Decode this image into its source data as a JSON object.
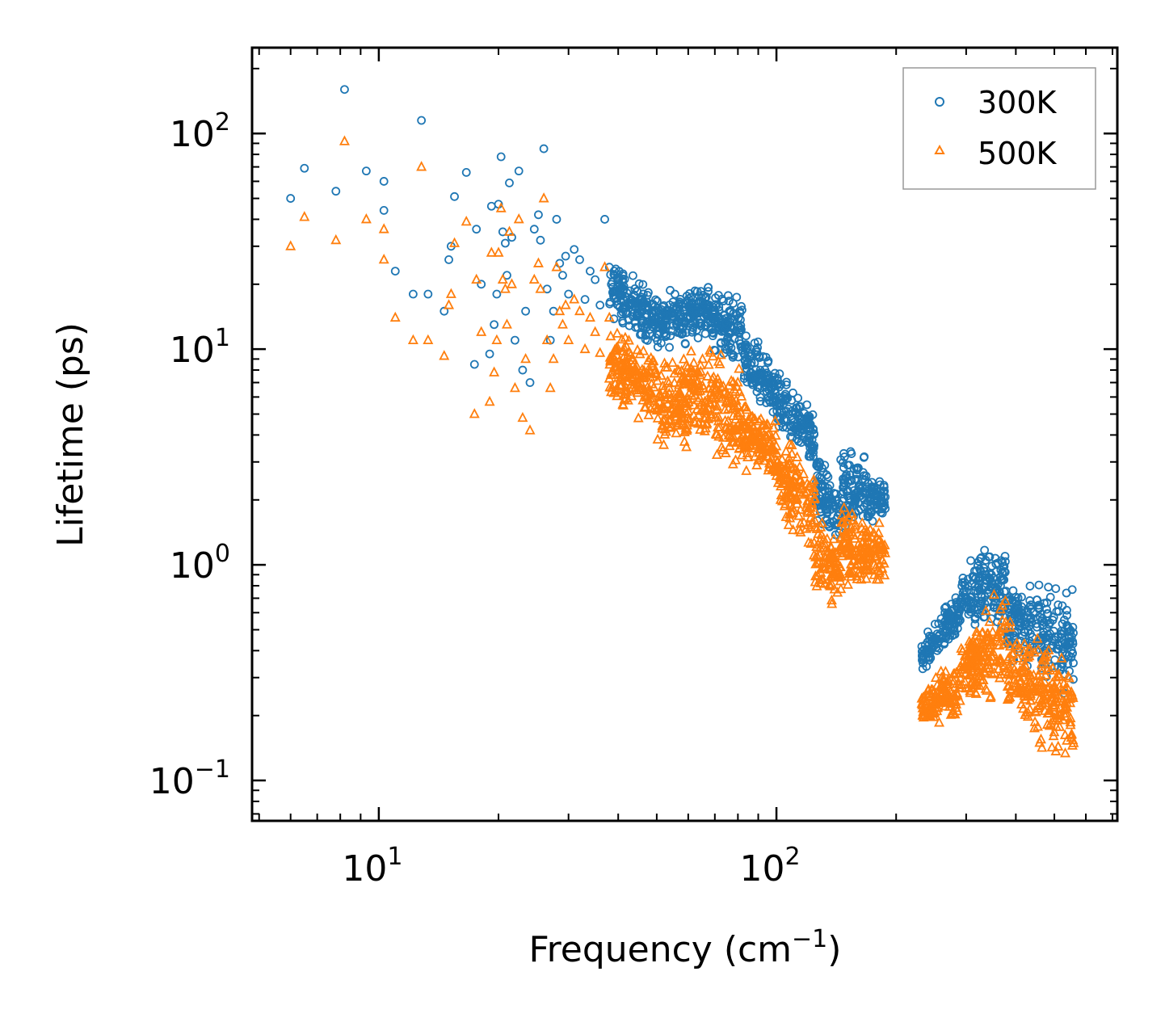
{
  "chart_data": {
    "type": "scatter",
    "xscale": "log",
    "yscale": "log",
    "xlim": [
      4.8,
      720
    ],
    "ylim": [
      0.065,
      250
    ],
    "xlabel_main": "Frequency (cm",
    "xlabel_sup": "−1",
    "xlabel_end": ")",
    "ylabel": "Lifetime (ps)",
    "x_ticks": [
      {
        "value": 10,
        "base": "10",
        "exp": "1"
      },
      {
        "value": 100,
        "base": "10",
        "exp": "2"
      }
    ],
    "y_ticks": [
      {
        "value": 0.1,
        "base": "10",
        "exp": "−1"
      },
      {
        "value": 1,
        "base": "10",
        "exp": "0"
      },
      {
        "value": 10,
        "base": "10",
        "exp": "1"
      },
      {
        "value": 100,
        "base": "10",
        "exp": "2"
      }
    ],
    "legend_position": "top-right",
    "series": [
      {
        "name": "300K",
        "marker": "circle",
        "color": "#1f77b4",
        "x": [
          6.0,
          6.5,
          7.8,
          8.2,
          9.3,
          10.3,
          10.3,
          11.0,
          12.2,
          12.8,
          13.3,
          14.6,
          15.0,
          15.2,
          15.5,
          16.6,
          17.4,
          17.6,
          18.1,
          19.0,
          19.2,
          19.5,
          19.8,
          20.0,
          20.3,
          20.5,
          20.8,
          21.0,
          21.3,
          21.6,
          22.0,
          22.5,
          23.0,
          23.4,
          24.0,
          24.6,
          25.2,
          25.5,
          26.0,
          26.5,
          27.0,
          27.5,
          28.0,
          28.5,
          29.0,
          29.5,
          30.0,
          31.0,
          32.0,
          33.0,
          34.0,
          35.0,
          36.0,
          37.0,
          38.0
        ],
        "y": [
          50,
          69,
          54,
          160,
          67,
          60,
          44,
          23,
          18,
          115,
          18,
          15,
          26,
          30,
          51,
          66,
          8.5,
          36,
          20,
          9.5,
          46,
          13,
          18,
          47,
          78,
          35,
          31,
          22,
          59,
          33,
          11,
          67,
          8,
          15,
          7,
          36,
          42,
          32,
          85,
          19,
          11,
          15,
          40,
          25,
          22,
          27,
          18,
          29,
          26,
          17,
          23,
          21,
          16,
          40,
          24
        ],
        "bands": [
          {
            "x0": 38,
            "x1": 50,
            "lo0": 13,
            "hi0": 28,
            "lo1": 9,
            "hi1": 20
          },
          {
            "x0": 50,
            "x1": 68,
            "lo0": 9,
            "hi0": 20,
            "lo1": 11,
            "hi1": 22
          },
          {
            "x0": 68,
            "x1": 82,
            "lo0": 9,
            "hi0": 20,
            "lo1": 8,
            "hi1": 19
          },
          {
            "x0": 82,
            "x1": 100,
            "lo0": 6,
            "hi0": 14,
            "lo1": 4.5,
            "hi1": 9
          },
          {
            "x0": 100,
            "x1": 125,
            "lo0": 3.5,
            "hi0": 9,
            "lo1": 2.5,
            "hi1": 5.5
          },
          {
            "x0": 125,
            "x1": 145,
            "lo0": 1.3,
            "hi0": 4.5,
            "lo1": 1.1,
            "hi1": 2.3
          },
          {
            "x0": 145,
            "x1": 188,
            "lo0": 1.2,
            "hi0": 4.3,
            "lo1": 1.5,
            "hi1": 2.7
          },
          {
            "x0": 232,
            "x1": 290,
            "lo0": 0.3,
            "hi0": 0.48,
            "lo1": 0.45,
            "hi1": 0.85
          },
          {
            "x0": 290,
            "x1": 380,
            "lo0": 0.45,
            "hi0": 1.1,
            "lo1": 0.42,
            "hi1": 1.65
          },
          {
            "x0": 380,
            "x1": 560,
            "lo0": 0.32,
            "hi0": 0.95,
            "lo1": 0.22,
            "hi1": 0.87
          }
        ]
      },
      {
        "name": "500K",
        "marker": "triangle",
        "color": "#ff7f0e",
        "x": [
          6.0,
          6.5,
          7.8,
          8.2,
          9.3,
          10.3,
          10.3,
          11.0,
          12.2,
          12.8,
          13.3,
          14.6,
          15.0,
          15.2,
          15.5,
          16.6,
          17.4,
          17.6,
          18.1,
          19.0,
          19.2,
          19.5,
          19.8,
          20.0,
          20.3,
          20.5,
          20.8,
          21.0,
          21.3,
          21.6,
          22.0,
          22.5,
          23.0,
          23.4,
          24.0,
          24.6,
          25.2,
          25.5,
          26.0,
          26.5,
          27.0,
          27.5,
          28.0,
          28.5,
          29.0,
          29.5,
          30.0,
          31.0,
          32.0,
          33.0,
          34.0,
          35.0,
          36.0,
          37.0,
          38.0
        ],
        "y": [
          30,
          41,
          32,
          92,
          40,
          36,
          26,
          14,
          11,
          70,
          11,
          9.3,
          16,
          18,
          31,
          39,
          5,
          21,
          12,
          5.7,
          28,
          7.8,
          11,
          28,
          45,
          21,
          19,
          13,
          35,
          20,
          6.6,
          40,
          4.8,
          9,
          4.2,
          21,
          25,
          19,
          50,
          11,
          6.6,
          9,
          24,
          15,
          13,
          16,
          11,
          17,
          15,
          10,
          14,
          12,
          9.6,
          24,
          14
        ],
        "bands": [
          {
            "x0": 38,
            "x1": 50,
            "lo0": 5,
            "hi0": 14,
            "lo1": 4.2,
            "hi1": 11
          },
          {
            "x0": 50,
            "x1": 68,
            "lo0": 3,
            "hi0": 10,
            "lo1": 3,
            "hi1": 13
          },
          {
            "x0": 68,
            "x1": 82,
            "lo0": 3,
            "hi0": 11,
            "lo1": 2.2,
            "hi1": 9
          },
          {
            "x0": 82,
            "x1": 100,
            "lo0": 2.5,
            "hi0": 6.5,
            "lo1": 2.3,
            "hi1": 5
          },
          {
            "x0": 100,
            "x1": 125,
            "lo0": 1.5,
            "hi0": 5,
            "lo1": 0.9,
            "hi1": 3.3
          },
          {
            "x0": 125,
            "x1": 145,
            "lo0": 0.55,
            "hi0": 2.2,
            "lo1": 0.65,
            "hi1": 1.4
          },
          {
            "x0": 145,
            "x1": 188,
            "lo0": 0.6,
            "hi0": 2.4,
            "lo1": 0.75,
            "hi1": 1.6
          },
          {
            "x0": 232,
            "x1": 290,
            "lo0": 0.17,
            "hi0": 0.27,
            "lo1": 0.18,
            "hi1": 0.42
          },
          {
            "x0": 290,
            "x1": 380,
            "lo0": 0.2,
            "hi0": 0.5,
            "lo1": 0.2,
            "hi1": 0.95
          },
          {
            "x0": 380,
            "x1": 560,
            "lo0": 0.17,
            "hi0": 0.6,
            "lo1": 0.1,
            "hi1": 0.45
          }
        ]
      }
    ]
  }
}
